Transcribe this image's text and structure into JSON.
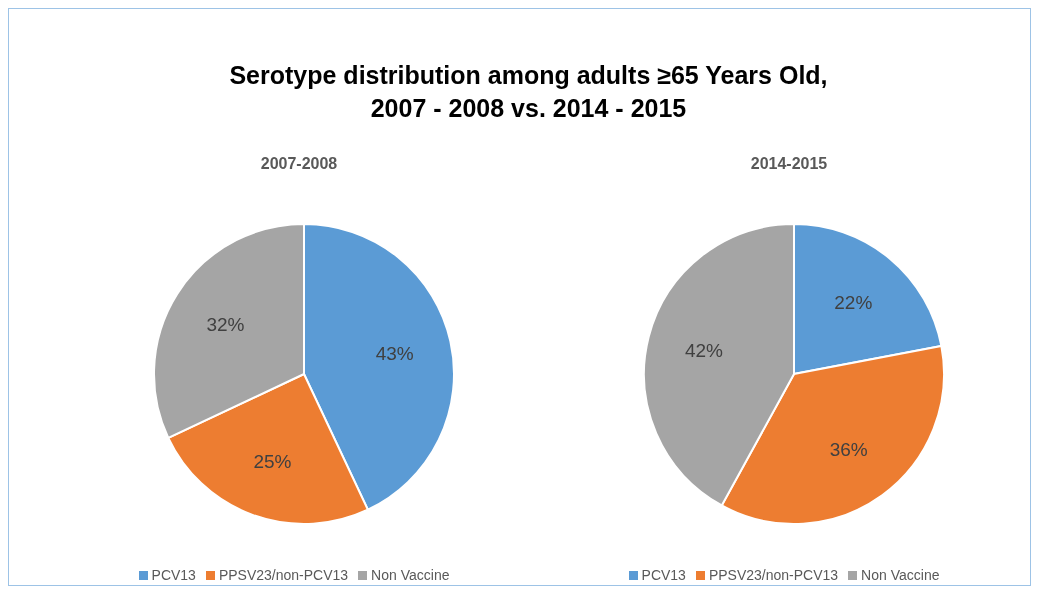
{
  "chart_data": [
    {
      "type": "other",
      "title": "Serotype distribution among adults ≥65 Years Old,\n2007 - 2008 vs. 2014 - 2015"
    },
    {
      "type": "pie",
      "title": "2007-2008",
      "categories": [
        "PCV13",
        "PPSV23/non-PCV13",
        "Non Vaccine"
      ],
      "values": [
        43,
        25,
        32
      ],
      "value_labels": [
        "43%",
        "25%",
        "32%"
      ],
      "colors": [
        "#5b9bd5",
        "#ed7d31",
        "#a5a5a5"
      ],
      "legend": "bottom"
    },
    {
      "type": "pie",
      "title": "2014-2015",
      "categories": [
        "PCV13",
        "PPSV23/non-PCV13",
        "Non Vaccine"
      ],
      "values": [
        22,
        36,
        42
      ],
      "value_labels": [
        "22%",
        "36%",
        "42%"
      ],
      "colors": [
        "#5b9bd5",
        "#ed7d31",
        "#a5a5a5"
      ],
      "legend": "bottom"
    }
  ]
}
